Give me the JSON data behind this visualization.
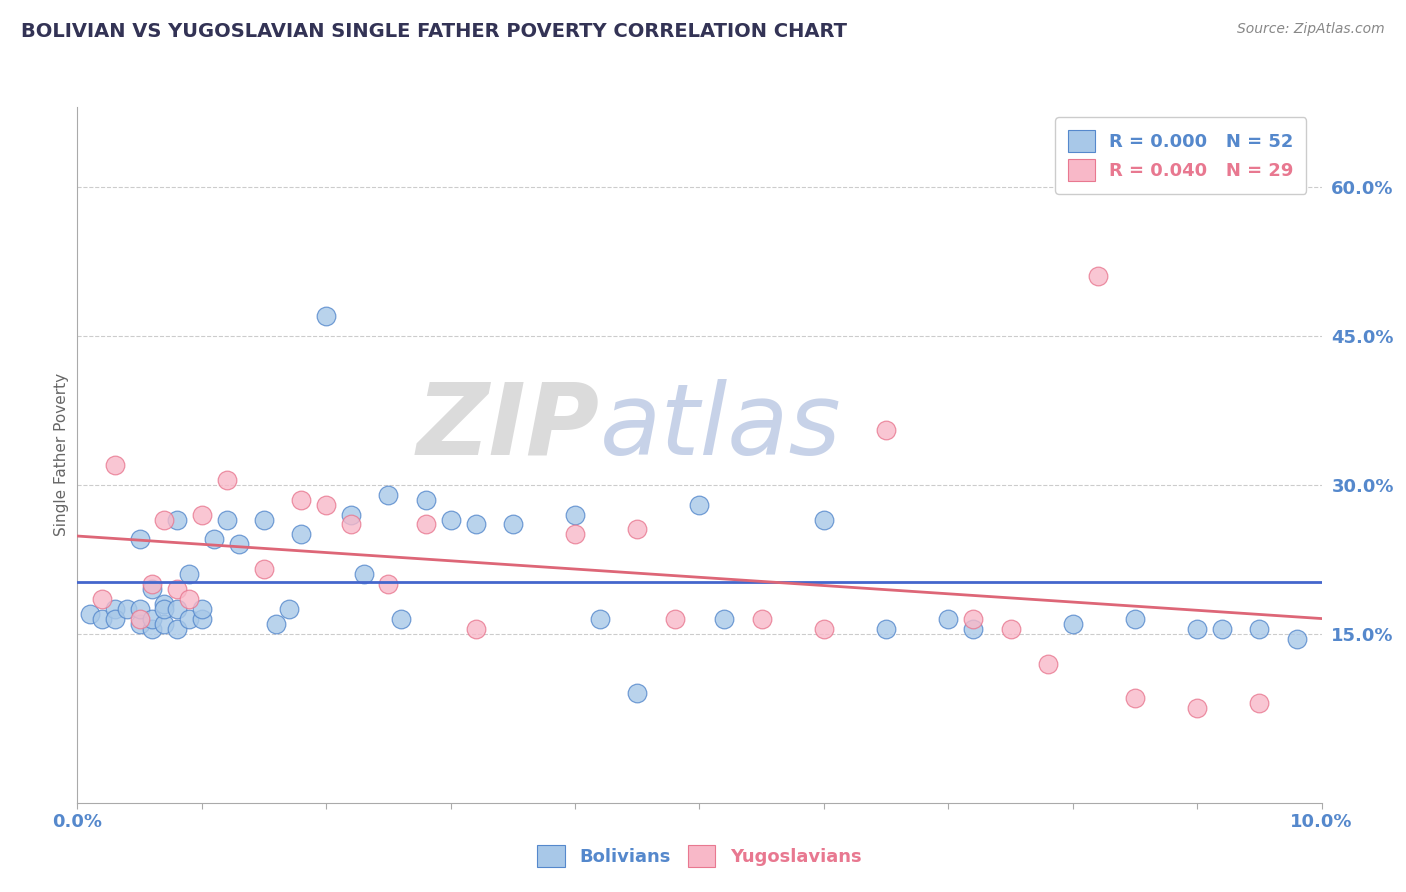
{
  "title": "BOLIVIAN VS YUGOSLAVIAN SINGLE FATHER POVERTY CORRELATION CHART",
  "source": "Source: ZipAtlas.com",
  "ylabel": "Single Father Poverty",
  "yticks": [
    0.15,
    0.3,
    0.45,
    0.6
  ],
  "ytick_labels": [
    "15.0%",
    "30.0%",
    "45.0%",
    "60.0%"
  ],
  "xlim": [
    0.0,
    0.1
  ],
  "ylim": [
    -0.02,
    0.68
  ],
  "bolivians_x": [
    0.001,
    0.002,
    0.003,
    0.003,
    0.004,
    0.005,
    0.005,
    0.005,
    0.006,
    0.006,
    0.006,
    0.007,
    0.007,
    0.007,
    0.008,
    0.008,
    0.008,
    0.009,
    0.009,
    0.01,
    0.01,
    0.011,
    0.012,
    0.013,
    0.015,
    0.016,
    0.017,
    0.018,
    0.02,
    0.022,
    0.023,
    0.025,
    0.026,
    0.028,
    0.03,
    0.032,
    0.035,
    0.04,
    0.042,
    0.045,
    0.05,
    0.052,
    0.06,
    0.065,
    0.07,
    0.072,
    0.08,
    0.085,
    0.09,
    0.092,
    0.095,
    0.098
  ],
  "bolivians_y": [
    0.17,
    0.165,
    0.175,
    0.165,
    0.175,
    0.16,
    0.175,
    0.245,
    0.155,
    0.165,
    0.195,
    0.18,
    0.16,
    0.175,
    0.265,
    0.155,
    0.175,
    0.165,
    0.21,
    0.165,
    0.175,
    0.245,
    0.265,
    0.24,
    0.265,
    0.16,
    0.175,
    0.25,
    0.47,
    0.27,
    0.21,
    0.29,
    0.165,
    0.285,
    0.265,
    0.26,
    0.26,
    0.27,
    0.165,
    0.09,
    0.28,
    0.165,
    0.265,
    0.155,
    0.165,
    0.155,
    0.16,
    0.165,
    0.155,
    0.155,
    0.155,
    0.145
  ],
  "yugoslavians_x": [
    0.002,
    0.003,
    0.005,
    0.006,
    0.007,
    0.008,
    0.009,
    0.01,
    0.012,
    0.015,
    0.018,
    0.02,
    0.022,
    0.025,
    0.028,
    0.032,
    0.04,
    0.045,
    0.048,
    0.055,
    0.06,
    0.065,
    0.072,
    0.075,
    0.078,
    0.082,
    0.085,
    0.09,
    0.095
  ],
  "yugoslavians_y": [
    0.185,
    0.32,
    0.165,
    0.2,
    0.265,
    0.195,
    0.185,
    0.27,
    0.305,
    0.215,
    0.285,
    0.28,
    0.26,
    0.2,
    0.26,
    0.155,
    0.25,
    0.255,
    0.165,
    0.165,
    0.155,
    0.355,
    0.165,
    0.155,
    0.12,
    0.51,
    0.085,
    0.075,
    0.08
  ],
  "bolivians_R": "0.000",
  "bolivians_N": "52",
  "yugoslavians_R": "0.040",
  "yugoslavians_N": "29",
  "blue_fill": "#a8c8e8",
  "blue_edge": "#5588cc",
  "pink_fill": "#f8b8c8",
  "pink_edge": "#e87890",
  "blue_line": "#4466cc",
  "pink_line": "#dd6677",
  "title_color": "#333355",
  "axis_color": "#5588cc",
  "watermark_zip_color": "#cccccc",
  "watermark_atlas_color": "#aabbdd",
  "source_color": "#888888",
  "background": "#ffffff",
  "grid_color": "#cccccc",
  "spine_color": "#aaaaaa"
}
